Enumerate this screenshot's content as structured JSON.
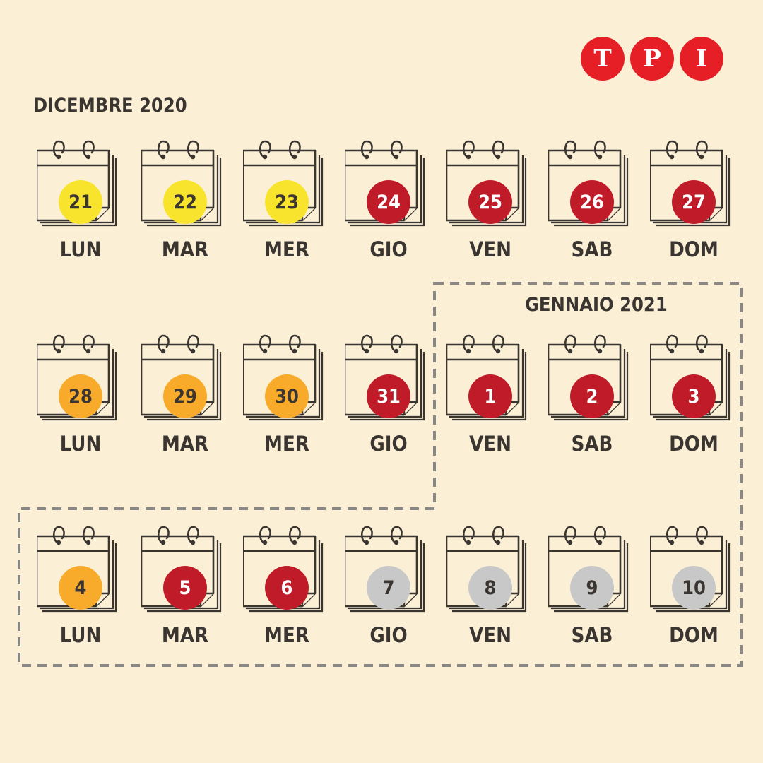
{
  "logo": {
    "letters": [
      "T",
      "P",
      "I"
    ]
  },
  "months": [
    {
      "title": "DICEMBRE 2020"
    },
    {
      "title": "GENNAIO 2021"
    }
  ],
  "colors": {
    "background": "#fbf0d6",
    "yellow": "#f8e42c",
    "orange": "#f8aa2a",
    "red": "#c01b29",
    "gray": "#c8c8c8",
    "logo_red": "#e51f25",
    "text_dark": "#3a3530"
  },
  "rows": [
    [
      {
        "day": "21",
        "weekday": "LUN",
        "zone": "yellow"
      },
      {
        "day": "22",
        "weekday": "MAR",
        "zone": "yellow"
      },
      {
        "day": "23",
        "weekday": "MER",
        "zone": "yellow"
      },
      {
        "day": "24",
        "weekday": "GIO",
        "zone": "red"
      },
      {
        "day": "25",
        "weekday": "VEN",
        "zone": "red"
      },
      {
        "day": "26",
        "weekday": "SAB",
        "zone": "red"
      },
      {
        "day": "27",
        "weekday": "DOM",
        "zone": "red"
      }
    ],
    [
      {
        "day": "28",
        "weekday": "LUN",
        "zone": "orange"
      },
      {
        "day": "29",
        "weekday": "MAR",
        "zone": "orange"
      },
      {
        "day": "30",
        "weekday": "MER",
        "zone": "orange"
      },
      {
        "day": "31",
        "weekday": "GIO",
        "zone": "red"
      },
      {
        "day": "1",
        "weekday": "VEN",
        "zone": "red"
      },
      {
        "day": "2",
        "weekday": "SAB",
        "zone": "red"
      },
      {
        "day": "3",
        "weekday": "DOM",
        "zone": "red"
      }
    ],
    [
      {
        "day": "4",
        "weekday": "LUN",
        "zone": "orange"
      },
      {
        "day": "5",
        "weekday": "MAR",
        "zone": "red"
      },
      {
        "day": "6",
        "weekday": "MER",
        "zone": "red"
      },
      {
        "day": "7",
        "weekday": "GIO",
        "zone": "gray"
      },
      {
        "day": "8",
        "weekday": "VEN",
        "zone": "gray"
      },
      {
        "day": "9",
        "weekday": "SAB",
        "zone": "gray"
      },
      {
        "day": "10",
        "weekday": "DOM",
        "zone": "gray"
      }
    ]
  ]
}
